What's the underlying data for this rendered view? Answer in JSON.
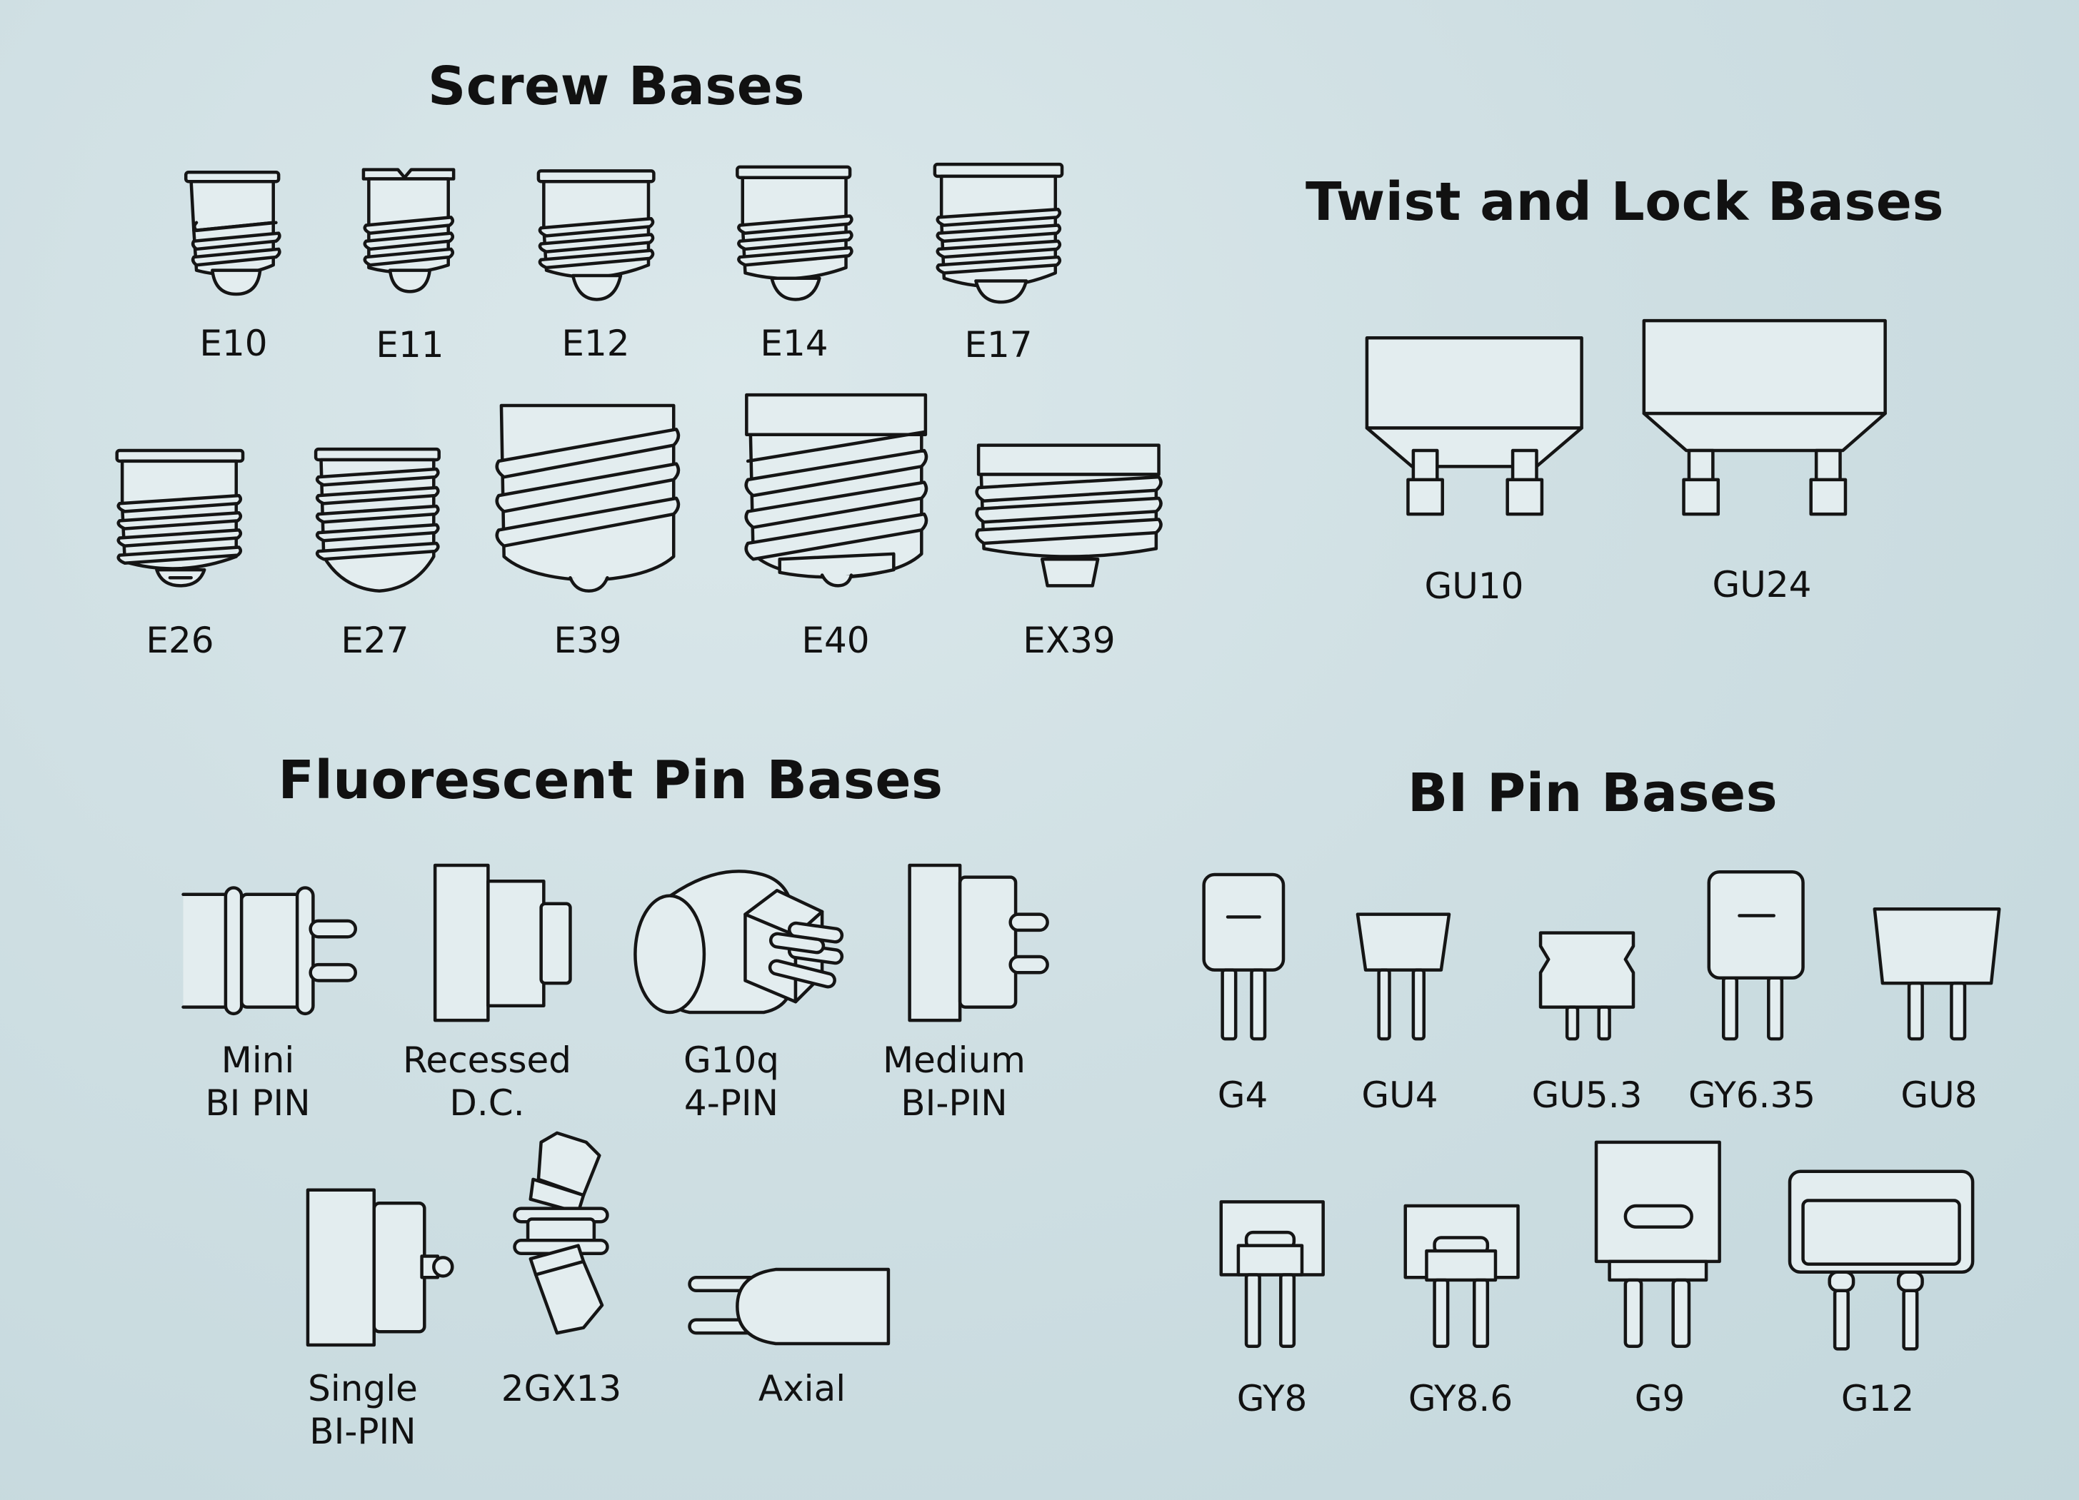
{
  "sections": {
    "screw": {
      "title": "Screw Bases",
      "items": [
        "E10",
        "E11",
        "E12",
        "E14",
        "E17",
        "E26",
        "E27",
        "E39",
        "E40",
        "EX39"
      ]
    },
    "twist": {
      "title": "Twist and Lock Bases",
      "items": [
        "GU10",
        "GU24"
      ]
    },
    "fluorescent": {
      "title": "Fluorescent Pin Bases",
      "items": [
        [
          "Mini",
          "BI PIN"
        ],
        [
          "Recessed",
          "D.C."
        ],
        [
          "G10q",
          "4-PIN"
        ],
        [
          "Medium",
          "BI-PIN"
        ],
        [
          "Single",
          "BI-PIN"
        ],
        [
          "2GX13"
        ],
        [
          "Axial"
        ]
      ]
    },
    "bipin": {
      "title": "BI Pin Bases",
      "items": [
        "G4",
        "GU4",
        "GU5.3",
        "GY6.35",
        "GU8",
        "GY8",
        "GY8.6",
        "G9",
        "G12"
      ]
    }
  },
  "colors": {
    "fill": "#e3edef",
    "stroke": "#151515"
  }
}
